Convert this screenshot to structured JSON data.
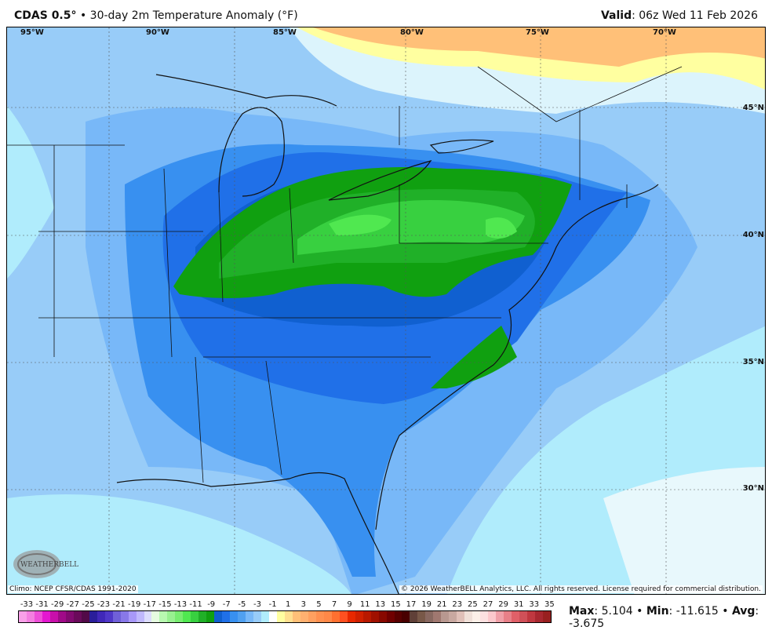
{
  "header": {
    "model": "CDAS 0.5°",
    "separator": "•",
    "title": "30-day 2m Temperature Anomaly (°F)",
    "valid_label": "Valid",
    "valid_value": ": 06z Wed 11 Feb 2026"
  },
  "map": {
    "longitude_labels": [
      "95°W",
      "90°W",
      "85°W",
      "80°W",
      "75°W",
      "70°W"
    ],
    "latitude_labels": [
      "45°N",
      "40°N",
      "35°N",
      "30°N"
    ],
    "climo_note": "Climo: NCEP CFSR/CDAS 1991-2020",
    "copyright": "© 2026 WeatherBELL Analytics, LLC. All rights reserved. License required for commercial distribution.",
    "logo_text": "WeatherBELL"
  },
  "colorbar": {
    "labels": [
      "-33",
      "-31",
      "-29",
      "-27",
      "-25",
      "-23",
      "-21",
      "-19",
      "-17",
      "-15",
      "-13",
      "-11",
      "-9",
      "-7",
      "-5",
      "-3",
      "-1",
      "1",
      "3",
      "5",
      "7",
      "9",
      "11",
      "13",
      "15",
      "17",
      "19",
      "21",
      "23",
      "25",
      "27",
      "29",
      "31",
      "33",
      "35"
    ],
    "colors": [
      "#f9a0e8",
      "#f47fe0",
      "#ee4fd8",
      "#e418d0",
      "#c80faa",
      "#a00a88",
      "#820a70",
      "#6a0a5a",
      "#520a48",
      "#2a1e9a",
      "#4028b8",
      "#5038c8",
      "#7060d8",
      "#8878e8",
      "#a898f8",
      "#c0b8fc",
      "#dcdcfc",
      "#e6fce0",
      "#b8f8b0",
      "#98f090",
      "#78ec70",
      "#50e850",
      "#38d040",
      "#20b028",
      "#10a010",
      "#1060d0",
      "#2070e8",
      "#3890f0",
      "#50a0f0",
      "#78b8f8",
      "#98ccf8",
      "#b0ecfc",
      "#ffffff",
      "#ffffa0",
      "#ffe090",
      "#ffc078",
      "#ffb070",
      "#ffa060",
      "#ff9050",
      "#ff8848",
      "#ff7030",
      "#ff5020",
      "#e82800",
      "#d02000",
      "#b81800",
      "#a01000",
      "#880800",
      "#700000",
      "#580000",
      "#480000",
      "#604038",
      "#785848",
      "#886860",
      "#a07870",
      "#b89890",
      "#c8a8a0",
      "#e0c0b8",
      "#f0e0d8",
      "#fcf0e8",
      "#fce0e0",
      "#fcc8cc",
      "#f0a0a8",
      "#e88088",
      "#e06068",
      "#d05058",
      "#c03840",
      "#a82830",
      "#982020"
    ]
  },
  "stats": {
    "max_label": "Max",
    "max_value": ": 5.104",
    "sep": " • ",
    "min_label": "Min",
    "min_value": ": -11.615",
    "avg_label": "Avg",
    "avg_value": ": -3.675"
  }
}
